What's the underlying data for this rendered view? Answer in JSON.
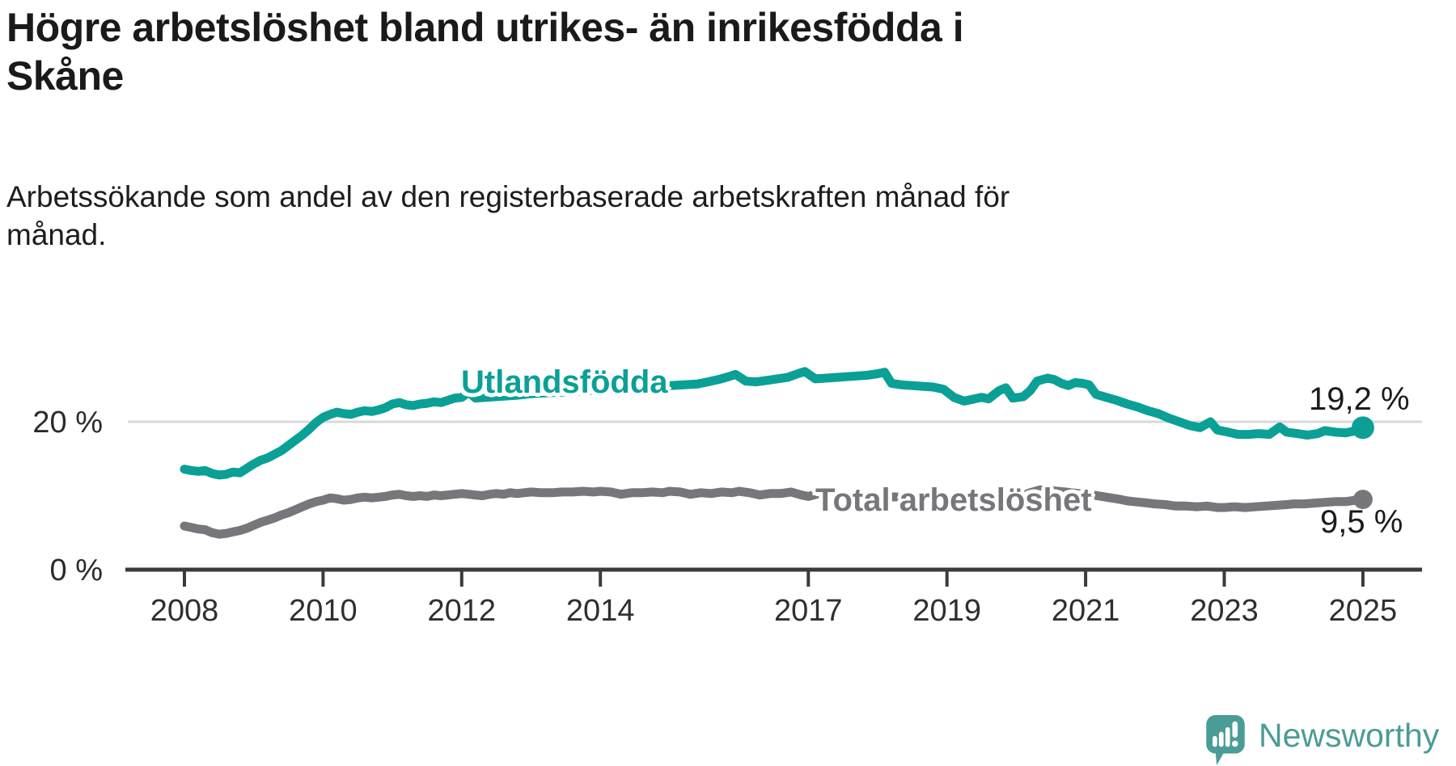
{
  "header": {
    "title_lines": [
      "Högre arbetslöshet bland utrikes- än inrikesfödda i",
      "Skåne"
    ],
    "subtitle_lines": [
      "Arbetssökande som andel av den registerbaserade arbetskraften månad för",
      "månad."
    ]
  },
  "branding": {
    "logo_text": "Newsworthy",
    "logo_icon": "newsworthy-speech-bubble-bar-chart-icon",
    "brand_color": "#4a9c96"
  },
  "chart_data": {
    "type": "line",
    "title": "Högre arbetslöshet bland utrikes- än inrikesfödda i Skåne",
    "subtitle": "Arbetssökande som andel av den registerbaserade arbetskraften månad för månad.",
    "unit": "%",
    "grid": "single horizontal gridline at 20 %",
    "legend_position": "inline labels on lines",
    "x_axis": {
      "ticks": [
        2008,
        2010,
        2012,
        2014,
        2017,
        2019,
        2021,
        2023,
        2025
      ],
      "range": [
        2008,
        2025.35
      ]
    },
    "y_axis": {
      "ticks": [
        {
          "value": 0,
          "label": "0 %"
        },
        {
          "value": 20,
          "label": "20 %"
        }
      ],
      "range": [
        0,
        35
      ]
    },
    "colors": {
      "utlandsfodda": "#0aa096",
      "total": "#76777a",
      "axis": "#3b3b3b",
      "gridline": "#d8d8d8"
    },
    "series": [
      {
        "name": "Utlandsfödda",
        "color": "#0aa096",
        "end_value": 19.2,
        "end_label": "19,2 %",
        "points": [
          [
            2008.0,
            13.6
          ],
          [
            2008.1,
            13.4
          ],
          [
            2008.2,
            13.3
          ],
          [
            2008.3,
            13.4
          ],
          [
            2008.4,
            13.0
          ],
          [
            2008.5,
            12.8
          ],
          [
            2008.6,
            12.9
          ],
          [
            2008.7,
            13.2
          ],
          [
            2008.8,
            13.1
          ],
          [
            2008.9,
            13.7
          ],
          [
            2009.0,
            14.3
          ],
          [
            2009.1,
            14.8
          ],
          [
            2009.2,
            15.1
          ],
          [
            2009.3,
            15.6
          ],
          [
            2009.4,
            16.1
          ],
          [
            2009.5,
            16.8
          ],
          [
            2009.6,
            17.5
          ],
          [
            2009.7,
            18.2
          ],
          [
            2009.8,
            19.0
          ],
          [
            2009.9,
            19.9
          ],
          [
            2010.0,
            20.6
          ],
          [
            2010.1,
            21.0
          ],
          [
            2010.2,
            21.3
          ],
          [
            2010.3,
            21.1
          ],
          [
            2010.4,
            21.0
          ],
          [
            2010.5,
            21.3
          ],
          [
            2010.6,
            21.5
          ],
          [
            2010.7,
            21.4
          ],
          [
            2010.8,
            21.6
          ],
          [
            2010.9,
            21.9
          ],
          [
            2011.0,
            22.4
          ],
          [
            2011.1,
            22.6
          ],
          [
            2011.2,
            22.3
          ],
          [
            2011.3,
            22.2
          ],
          [
            2011.4,
            22.4
          ],
          [
            2011.5,
            22.5
          ],
          [
            2011.6,
            22.7
          ],
          [
            2011.7,
            22.6
          ],
          [
            2011.8,
            22.9
          ],
          [
            2011.9,
            23.2
          ],
          [
            2012.0,
            23.3
          ],
          [
            2012.1,
            24.0
          ],
          [
            2012.2,
            23.2
          ],
          [
            2012.35,
            23.3
          ],
          [
            2012.5,
            23.4
          ],
          [
            2012.65,
            23.5
          ],
          [
            2012.8,
            23.6
          ],
          [
            2013.0,
            23.8
          ],
          [
            2013.2,
            23.9
          ],
          [
            2013.4,
            24.0
          ],
          [
            2013.6,
            24.1
          ],
          [
            2013.8,
            24.2
          ],
          [
            2014.0,
            24.3
          ],
          [
            2014.2,
            24.4
          ],
          [
            2014.4,
            24.5
          ],
          [
            2014.6,
            24.6
          ],
          [
            2014.8,
            24.8
          ],
          [
            2015.0,
            24.9
          ],
          [
            2015.2,
            25.0
          ],
          [
            2015.4,
            25.1
          ],
          [
            2015.55,
            25.4
          ],
          [
            2015.7,
            25.7
          ],
          [
            2015.85,
            26.1
          ],
          [
            2015.95,
            26.4
          ],
          [
            2016.1,
            25.5
          ],
          [
            2016.25,
            25.4
          ],
          [
            2016.4,
            25.6
          ],
          [
            2016.55,
            25.8
          ],
          [
            2016.7,
            26.0
          ],
          [
            2016.85,
            26.5
          ],
          [
            2016.95,
            26.8
          ],
          [
            2017.1,
            25.8
          ],
          [
            2017.25,
            25.9
          ],
          [
            2017.4,
            26.0
          ],
          [
            2017.55,
            26.1
          ],
          [
            2017.7,
            26.2
          ],
          [
            2017.85,
            26.3
          ],
          [
            2018.0,
            26.5
          ],
          [
            2018.1,
            26.7
          ],
          [
            2018.2,
            25.2
          ],
          [
            2018.35,
            25.0
          ],
          [
            2018.5,
            24.9
          ],
          [
            2018.65,
            24.8
          ],
          [
            2018.8,
            24.7
          ],
          [
            2018.95,
            24.4
          ],
          [
            2019.1,
            23.3
          ],
          [
            2019.25,
            22.8
          ],
          [
            2019.4,
            23.1
          ],
          [
            2019.5,
            23.3
          ],
          [
            2019.6,
            23.1
          ],
          [
            2019.75,
            24.2
          ],
          [
            2019.85,
            24.6
          ],
          [
            2019.95,
            23.2
          ],
          [
            2020.1,
            23.4
          ],
          [
            2020.2,
            24.2
          ],
          [
            2020.3,
            25.5
          ],
          [
            2020.45,
            25.9
          ],
          [
            2020.55,
            25.7
          ],
          [
            2020.65,
            25.2
          ],
          [
            2020.75,
            24.9
          ],
          [
            2020.85,
            25.3
          ],
          [
            2020.95,
            25.2
          ],
          [
            2021.05,
            25.0
          ],
          [
            2021.15,
            23.7
          ],
          [
            2021.3,
            23.3
          ],
          [
            2021.45,
            22.9
          ],
          [
            2021.6,
            22.4
          ],
          [
            2021.75,
            22.0
          ],
          [
            2021.9,
            21.5
          ],
          [
            2022.05,
            21.1
          ],
          [
            2022.2,
            20.5
          ],
          [
            2022.35,
            20.0
          ],
          [
            2022.5,
            19.5
          ],
          [
            2022.65,
            19.2
          ],
          [
            2022.8,
            20.0
          ],
          [
            2022.9,
            18.9
          ],
          [
            2023.05,
            18.6
          ],
          [
            2023.2,
            18.3
          ],
          [
            2023.35,
            18.3
          ],
          [
            2023.5,
            18.4
          ],
          [
            2023.65,
            18.3
          ],
          [
            2023.8,
            19.3
          ],
          [
            2023.9,
            18.6
          ],
          [
            2024.05,
            18.4
          ],
          [
            2024.2,
            18.2
          ],
          [
            2024.35,
            18.4
          ],
          [
            2024.45,
            18.8
          ],
          [
            2024.6,
            18.6
          ],
          [
            2024.75,
            18.5
          ],
          [
            2024.9,
            18.8
          ],
          [
            2025.0,
            19.2
          ]
        ]
      },
      {
        "name": "Total arbetslöshet",
        "color": "#76777a",
        "end_value": 9.5,
        "end_label": "9,5 %",
        "points": [
          [
            2008.0,
            5.9
          ],
          [
            2008.1,
            5.7
          ],
          [
            2008.2,
            5.5
          ],
          [
            2008.3,
            5.4
          ],
          [
            2008.4,
            5.0
          ],
          [
            2008.5,
            4.8
          ],
          [
            2008.6,
            4.9
          ],
          [
            2008.7,
            5.1
          ],
          [
            2008.8,
            5.3
          ],
          [
            2008.9,
            5.6
          ],
          [
            2009.0,
            6.0
          ],
          [
            2009.1,
            6.4
          ],
          [
            2009.2,
            6.7
          ],
          [
            2009.3,
            7.0
          ],
          [
            2009.4,
            7.4
          ],
          [
            2009.5,
            7.7
          ],
          [
            2009.6,
            8.1
          ],
          [
            2009.7,
            8.5
          ],
          [
            2009.8,
            8.9
          ],
          [
            2009.9,
            9.2
          ],
          [
            2010.0,
            9.4
          ],
          [
            2010.1,
            9.7
          ],
          [
            2010.2,
            9.6
          ],
          [
            2010.3,
            9.4
          ],
          [
            2010.4,
            9.5
          ],
          [
            2010.5,
            9.7
          ],
          [
            2010.6,
            9.8
          ],
          [
            2010.7,
            9.7
          ],
          [
            2010.8,
            9.8
          ],
          [
            2010.9,
            9.9
          ],
          [
            2011.0,
            10.1
          ],
          [
            2011.1,
            10.2
          ],
          [
            2011.2,
            10.0
          ],
          [
            2011.3,
            9.9
          ],
          [
            2011.4,
            10.0
          ],
          [
            2011.5,
            9.9
          ],
          [
            2011.6,
            10.1
          ],
          [
            2011.7,
            10.0
          ],
          [
            2011.8,
            10.1
          ],
          [
            2011.9,
            10.2
          ],
          [
            2012.0,
            10.3
          ],
          [
            2012.1,
            10.2
          ],
          [
            2012.2,
            10.1
          ],
          [
            2012.3,
            10.0
          ],
          [
            2012.4,
            10.2
          ],
          [
            2012.5,
            10.3
          ],
          [
            2012.6,
            10.2
          ],
          [
            2012.7,
            10.4
          ],
          [
            2012.8,
            10.3
          ],
          [
            2012.9,
            10.4
          ],
          [
            2013.0,
            10.5
          ],
          [
            2013.15,
            10.4
          ],
          [
            2013.3,
            10.4
          ],
          [
            2013.45,
            10.5
          ],
          [
            2013.6,
            10.5
          ],
          [
            2013.75,
            10.6
          ],
          [
            2013.9,
            10.5
          ],
          [
            2014.0,
            10.6
          ],
          [
            2014.15,
            10.5
          ],
          [
            2014.3,
            10.2
          ],
          [
            2014.45,
            10.4
          ],
          [
            2014.6,
            10.4
          ],
          [
            2014.75,
            10.5
          ],
          [
            2014.9,
            10.4
          ],
          [
            2015.0,
            10.6
          ],
          [
            2015.15,
            10.5
          ],
          [
            2015.3,
            10.2
          ],
          [
            2015.45,
            10.4
          ],
          [
            2015.6,
            10.3
          ],
          [
            2015.75,
            10.5
          ],
          [
            2015.9,
            10.4
          ],
          [
            2016.0,
            10.6
          ],
          [
            2016.15,
            10.4
          ],
          [
            2016.3,
            10.1
          ],
          [
            2016.45,
            10.3
          ],
          [
            2016.6,
            10.3
          ],
          [
            2016.75,
            10.5
          ],
          [
            2016.9,
            10.1
          ],
          [
            2017.0,
            9.9
          ],
          [
            2017.15,
            10.3
          ],
          [
            2017.3,
            10.2
          ],
          [
            2017.5,
            10.1
          ],
          [
            2017.7,
            10.0
          ],
          [
            2017.9,
            10.0
          ],
          [
            2018.1,
            9.9
          ],
          [
            2018.3,
            9.8
          ],
          [
            2018.5,
            9.7
          ],
          [
            2018.7,
            9.6
          ],
          [
            2018.9,
            9.5
          ],
          [
            2019.1,
            9.4
          ],
          [
            2019.3,
            9.3
          ],
          [
            2019.5,
            9.3
          ],
          [
            2019.7,
            9.4
          ],
          [
            2019.9,
            9.5
          ],
          [
            2020.0,
            9.7
          ],
          [
            2020.2,
            10.4
          ],
          [
            2020.35,
            10.8
          ],
          [
            2020.5,
            10.7
          ],
          [
            2020.7,
            10.5
          ],
          [
            2020.9,
            10.3
          ],
          [
            2021.1,
            10.1
          ],
          [
            2021.3,
            9.8
          ],
          [
            2021.5,
            9.5
          ],
          [
            2021.6,
            9.3
          ],
          [
            2021.7,
            9.2
          ],
          [
            2021.8,
            9.1
          ],
          [
            2021.9,
            9.0
          ],
          [
            2022.0,
            8.9
          ],
          [
            2022.15,
            8.8
          ],
          [
            2022.3,
            8.6
          ],
          [
            2022.45,
            8.6
          ],
          [
            2022.6,
            8.5
          ],
          [
            2022.75,
            8.6
          ],
          [
            2022.9,
            8.4
          ],
          [
            2023.0,
            8.4
          ],
          [
            2023.15,
            8.5
          ],
          [
            2023.3,
            8.4
          ],
          [
            2023.45,
            8.5
          ],
          [
            2023.6,
            8.6
          ],
          [
            2023.75,
            8.7
          ],
          [
            2023.9,
            8.8
          ],
          [
            2024.0,
            8.9
          ],
          [
            2024.15,
            8.9
          ],
          [
            2024.3,
            9.0
          ],
          [
            2024.45,
            9.1
          ],
          [
            2024.6,
            9.2
          ],
          [
            2024.75,
            9.2
          ],
          [
            2024.9,
            9.4
          ],
          [
            2025.0,
            9.5
          ]
        ]
      }
    ]
  }
}
